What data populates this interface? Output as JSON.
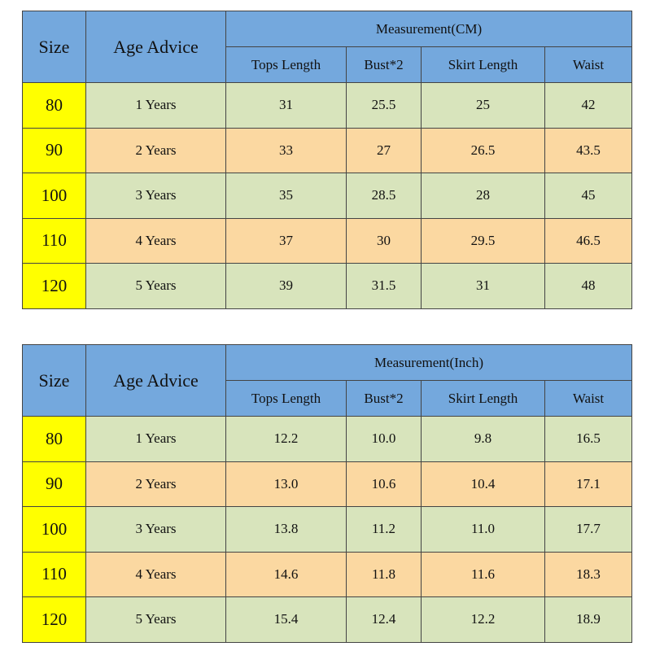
{
  "tables": [
    {
      "headers": {
        "size": "Size",
        "age": "Age Advice",
        "measurement": "Measurement(CM)",
        "columns": [
          "Tops Length",
          "Bust*2",
          "Skirt Length",
          "Waist"
        ]
      },
      "rows": [
        [
          "80",
          "1 Years",
          "31",
          "25.5",
          "25",
          "42"
        ],
        [
          "90",
          "2 Years",
          "33",
          "27",
          "26.5",
          "43.5"
        ],
        [
          "100",
          "3 Years",
          "35",
          "28.5",
          "28",
          "45"
        ],
        [
          "110",
          "4 Years",
          "37",
          "30",
          "29.5",
          "46.5"
        ],
        [
          "120",
          "5 Years",
          "39",
          "31.5",
          "31",
          "48"
        ]
      ]
    },
    {
      "headers": {
        "size": "Size",
        "age": "Age Advice",
        "measurement": "Measurement(Inch)",
        "columns": [
          "Tops Length",
          "Bust*2",
          "Skirt Length",
          "Waist"
        ]
      },
      "rows": [
        [
          "80",
          "1 Years",
          "12.2",
          "10.0",
          "9.8",
          "16.5"
        ],
        [
          "90",
          "2 Years",
          "13.0",
          "10.6",
          "10.4",
          "17.1"
        ],
        [
          "100",
          "3 Years",
          "13.8",
          "11.2",
          "11.0",
          "17.7"
        ],
        [
          "110",
          "4 Years",
          "14.6",
          "11.8",
          "11.6",
          "18.3"
        ],
        [
          "120",
          "5 Years",
          "15.4",
          "12.4",
          "12.2",
          "18.9"
        ]
      ]
    }
  ]
}
